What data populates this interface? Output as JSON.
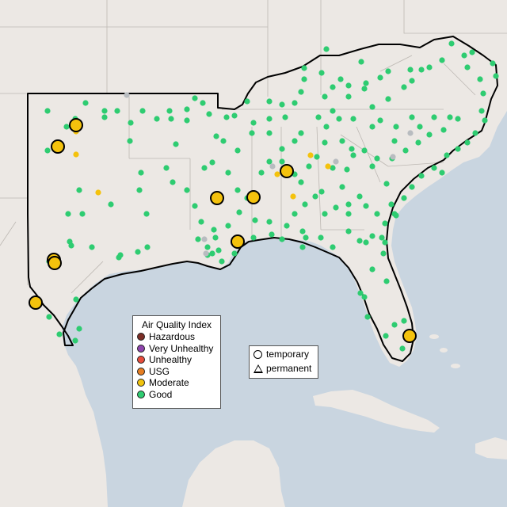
{
  "map": {
    "colors": {
      "land": "#ece8e4",
      "water": "#c9d5e0",
      "good": "#2ecc71",
      "moderate": "#f4c20d",
      "missing": "#b8bcc0"
    },
    "aqi_legend": {
      "title": "Air Quality Index",
      "items": [
        {
          "label": "Hazardous",
          "color": "#7b2d26"
        },
        {
          "label": "Very Unhealthy",
          "color": "#8e44ad"
        },
        {
          "label": "Unhealthy",
          "color": "#e74c3c"
        },
        {
          "label": "USG",
          "color": "#e67e22"
        },
        {
          "label": "Moderate",
          "color": "#f1c40f"
        },
        {
          "label": "Good",
          "color": "#2ecc71"
        }
      ]
    },
    "shape_legend": {
      "items": [
        {
          "label": "temporary",
          "shape": "circle-icon"
        },
        {
          "label": "permanent",
          "shape": "triangle-icon"
        }
      ]
    }
  }
}
